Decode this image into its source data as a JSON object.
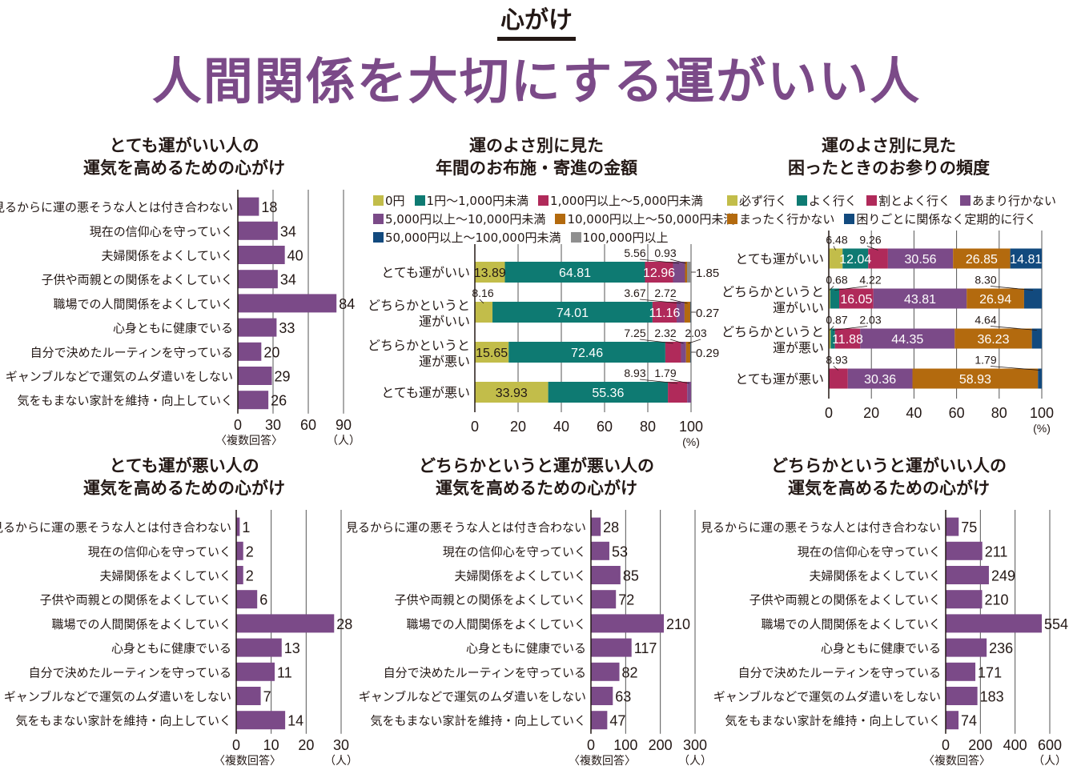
{
  "header": {
    "kicker": "心がけ",
    "title": "人間関係を大切にする運がいい人"
  },
  "colors": {
    "bar": "#7b4a88",
    "grid": "#555555",
    "seg_yellow": "#c2bd4a",
    "seg_teal": "#0e7a72",
    "seg_crimson": "#b02a5a",
    "seg_purple": "#7b4a88",
    "seg_orange": "#b36a0e",
    "seg_navy": "#124a7e",
    "seg_gray": "#8f8f8f"
  },
  "chart_data": [
    {
      "id": "very-lucky-habits",
      "type": "bar",
      "title_lines": [
        "とても運がいい人の",
        "運気を高めるための心がけ"
      ],
      "categories": [
        "見るからに運の悪そうな人とは付き合わない",
        "現在の信仰心を守っていく",
        "夫婦関係をよくしていく",
        "子供や両親との関係をよくしていく",
        "職場での人間関係をよくしていく",
        "心身ともに健康でいる",
        "自分で決めたルーティンを守っている",
        "ギャンブルなどで運気のムダ遣いをしない",
        "気をもまない家計を維持・向上していく"
      ],
      "values": [
        18,
        34,
        40,
        34,
        84,
        33,
        20,
        29,
        26
      ],
      "xlim": [
        0,
        90
      ],
      "xticks": [
        0,
        30,
        60,
        90
      ],
      "note": "〈複数回答〉",
      "unit": "（人）",
      "grid": true
    },
    {
      "id": "very-unlucky-habits",
      "type": "bar",
      "title_lines": [
        "とても運が悪い人の",
        "運気を高めるための心がけ"
      ],
      "categories": [
        "見るからに運の悪そうな人とは付き合わない",
        "現在の信仰心を守っていく",
        "夫婦関係をよくしていく",
        "子供や両親との関係をよくしていく",
        "職場での人間関係をよくしていく",
        "心身ともに健康でいる",
        "自分で決めたルーティンを守っている",
        "ギャンブルなどで運気のムダ遣いをしない",
        "気をもまない家計を維持・向上していく"
      ],
      "values": [
        1,
        2,
        2,
        6,
        28,
        13,
        11,
        7,
        14
      ],
      "xlim": [
        0,
        30
      ],
      "xticks": [
        0,
        10,
        20,
        30
      ],
      "note": "〈複数回答〉",
      "unit": "（人）",
      "grid": true
    },
    {
      "id": "somewhat-unlucky-habits",
      "type": "bar",
      "title_lines": [
        "どちらかというと運が悪い人の",
        "運気を高めるための心がけ"
      ],
      "categories": [
        "見るからに運の悪そうな人とは付き合わない",
        "現在の信仰心を守っていく",
        "夫婦関係をよくしていく",
        "子供や両親との関係をよくしていく",
        "職場での人間関係をよくしていく",
        "心身ともに健康でいる",
        "自分で決めたルーティンを守っている",
        "ギャンブルなどで運気のムダ遣いをしない",
        "気をもまない家計を維持・向上していく"
      ],
      "values": [
        28,
        53,
        85,
        72,
        210,
        117,
        82,
        63,
        47
      ],
      "xlim": [
        0,
        300
      ],
      "xticks": [
        0,
        100,
        200,
        300
      ],
      "note": "〈複数回答〉",
      "unit": "（人）",
      "grid": true
    },
    {
      "id": "somewhat-lucky-habits",
      "type": "bar",
      "title_lines": [
        "どちらかというと運がいい人の",
        "運気を高めるための心がけ"
      ],
      "categories": [
        "見るからに運の悪そうな人とは付き合わない",
        "現在の信仰心を守っていく",
        "夫婦関係をよくしていく",
        "子供や両親との関係をよくしていく",
        "職場での人間関係をよくしていく",
        "心身ともに健康でいる",
        "自分で決めたルーティンを守っている",
        "ギャンブルなどで運気のムダ遣いをしない",
        "気をもまない家計を維持・向上していく"
      ],
      "values": [
        75,
        211,
        249,
        210,
        554,
        236,
        171,
        183,
        74
      ],
      "xlim": [
        0,
        600
      ],
      "xticks": [
        0,
        200,
        400,
        600
      ],
      "note": "〈複数回答〉",
      "unit": "（人）",
      "grid": true
    },
    {
      "id": "donation-amount",
      "type": "bar",
      "stacked": true,
      "orientation": "horizontal",
      "title_lines": [
        "運のよさ別に見た",
        "年間のお布施・寄進の金額"
      ],
      "legend_rows": [
        [
          0,
          1,
          2
        ],
        [
          3,
          4
        ],
        [
          5,
          6
        ]
      ],
      "series_names": [
        "0円",
        "1円〜1,000円未満",
        "1,000円以上〜5,000円未満",
        "5,000円以上〜10,000円未満",
        "10,000円以上〜50,000円未満",
        "50,000円以上〜100,000円未満",
        "100,000円以上"
      ],
      "series_colors": [
        "#c2bd4a",
        "#0e7a72",
        "#b02a5a",
        "#7b4a88",
        "#b36a0e",
        "#124a7e",
        "#8f8f8f"
      ],
      "categories": [
        [
          "とても運がいい"
        ],
        [
          "どちらかというと",
          "運がいい"
        ],
        [
          "どちらかというと",
          "運が悪い"
        ],
        [
          "とても運が悪い"
        ]
      ],
      "series": [
        {
          "name": "0円",
          "values": [
            13.89,
            8.16,
            15.65,
            33.93
          ]
        },
        {
          "name": "1円〜1,000円未満",
          "values": [
            64.81,
            74.01,
            72.46,
            55.36
          ]
        },
        {
          "name": "1,000円以上〜5,000円未満",
          "values": [
            12.96,
            11.16,
            7.25,
            8.93
          ]
        },
        {
          "name": "5,000円以上〜10,000円未満",
          "values": [
            5.56,
            3.67,
            2.32,
            1.79
          ]
        },
        {
          "name": "10,000円以上〜50,000円未満",
          "values": [
            0.93,
            2.72,
            2.03,
            0
          ]
        },
        {
          "name": "50,000円以上〜100,000円未満",
          "values": [
            0,
            0.27,
            0.29,
            0
          ]
        },
        {
          "name": "100,000円以上",
          "values": [
            1.85,
            0,
            0,
            0
          ]
        }
      ],
      "xlim": [
        0,
        100
      ],
      "xticks": [
        0,
        20,
        40,
        60,
        80,
        100
      ],
      "unit": "(%)",
      "grid": true
    },
    {
      "id": "shrine-visit-frequency",
      "type": "bar",
      "stacked": true,
      "orientation": "horizontal",
      "title_lines": [
        "運のよさ別に見た",
        "困ったときのお参りの頻度"
      ],
      "legend_rows": [
        [
          0,
          1,
          2,
          3
        ],
        [
          4,
          5
        ]
      ],
      "series_names": [
        "必ず行く",
        "よく行く",
        "割とよく行く",
        "あまり行かない",
        "まったく行かない",
        "困りごとに関係なく定期的に行く"
      ],
      "series_colors": [
        "#c2bd4a",
        "#0e7a72",
        "#b02a5a",
        "#7b4a88",
        "#b36a0e",
        "#124a7e"
      ],
      "categories": [
        [
          "とても運がいい"
        ],
        [
          "どちらかというと",
          "運がいい"
        ],
        [
          "どちらかというと",
          "運が悪い"
        ],
        [
          "とても運が悪い"
        ]
      ],
      "series": [
        {
          "name": "必ず行く",
          "values": [
            6.48,
            0.68,
            0.87,
            0
          ]
        },
        {
          "name": "よく行く",
          "values": [
            12.04,
            4.22,
            2.03,
            0
          ]
        },
        {
          "name": "割とよく行く",
          "values": [
            9.26,
            16.05,
            11.88,
            8.93
          ]
        },
        {
          "name": "あまり行かない",
          "values": [
            30.56,
            43.81,
            44.35,
            30.36
          ]
        },
        {
          "name": "まったく行かない",
          "values": [
            26.85,
            26.94,
            36.23,
            58.93
          ]
        },
        {
          "name": "困りごとに関係なく定期的に行く",
          "values": [
            14.81,
            8.3,
            4.64,
            1.79
          ]
        }
      ],
      "xlim": [
        0,
        100
      ],
      "xticks": [
        0,
        20,
        40,
        60,
        80,
        100
      ],
      "unit": "(%)",
      "grid": true
    }
  ]
}
